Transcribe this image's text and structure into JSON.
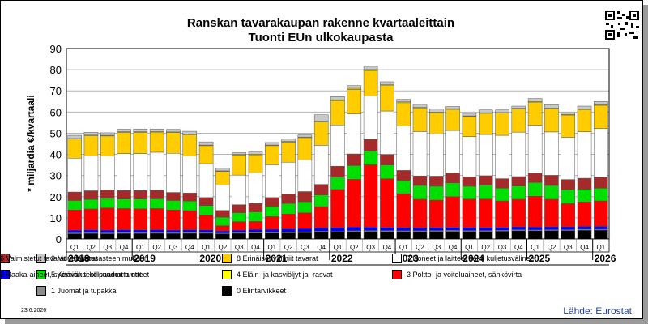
{
  "title_line1": "Ranskan tavarakaupan rakenne kvartaaleittain",
  "title_line2": "Tuonti EUn ulkokaupasta",
  "date": "23.6.2026",
  "source": "Lähde: Eurostat",
  "chart_data": {
    "type": "bar",
    "stacked": true,
    "ylabel": "* miljardia €/kvartaali",
    "ylim": [
      0,
      90
    ],
    "yticks": [
      0,
      10,
      20,
      30,
      40,
      50,
      60,
      70,
      80,
      90
    ],
    "grid": true,
    "legend_position": "bottom",
    "quarter_labels": [
      "Q1",
      "Q2",
      "Q3",
      "Q4",
      "Q1",
      "Q2",
      "Q3",
      "Q4",
      "Q1",
      "Q2",
      "Q3",
      "Q4",
      "Q1",
      "Q2",
      "Q3",
      "Q4",
      "Q1",
      "Q2",
      "Q3",
      "Q4",
      "Q1",
      "Q2",
      "Q3",
      "Q4",
      "Q1",
      "Q2",
      "Q3",
      "Q4",
      "Q1",
      "Q2",
      "Q3",
      "Q4",
      "Q1"
    ],
    "year_labels": [
      "2018",
      "2019",
      "2020",
      "2021",
      "2022",
      "2023",
      "2024",
      "2025",
      "2026"
    ],
    "series": [
      {
        "name": "0 Elintarvikkeet",
        "color": "#000000",
        "values": [
          2.5,
          2.6,
          2.5,
          2.6,
          2.6,
          2.7,
          2.6,
          2.7,
          2.7,
          2.5,
          2.7,
          2.8,
          2.8,
          2.9,
          3.0,
          3.2,
          3.2,
          3.5,
          3.6,
          3.5,
          3.5,
          3.5,
          3.6,
          3.6,
          3.6,
          3.6,
          3.7,
          3.9,
          3.9,
          4.0,
          4.0,
          4.1,
          4.2
        ]
      },
      {
        "name": "1 Juomat ja tupakka",
        "color": "#8c8c8c",
        "values": [
          0.4,
          0.4,
          0.4,
          0.5,
          0.4,
          0.4,
          0.4,
          0.5,
          0.4,
          0.3,
          0.4,
          0.5,
          0.4,
          0.4,
          0.4,
          0.5,
          0.4,
          0.4,
          0.4,
          0.5,
          0.4,
          0.4,
          0.4,
          0.5,
          0.4,
          0.4,
          0.4,
          0.5,
          0.4,
          0.4,
          0.4,
          0.5,
          0.4
        ]
      },
      {
        "name": "2 Raaka-aineet, syötäväksi kelpaamattomat",
        "color": "#0000ff",
        "values": [
          1.3,
          1.4,
          1.3,
          1.3,
          1.3,
          1.3,
          1.2,
          1.2,
          1.2,
          1.0,
          1.1,
          1.2,
          1.4,
          1.5,
          1.5,
          1.6,
          1.8,
          1.8,
          1.6,
          1.5,
          1.5,
          1.4,
          1.4,
          1.4,
          1.4,
          1.4,
          1.4,
          1.4,
          1.4,
          1.4,
          1.4,
          1.4,
          1.4
        ]
      },
      {
        "name": "3 Poltto- ja voiteluaineet, sähkövirta",
        "color": "#ff0000",
        "values": [
          9.5,
          9.8,
          10.5,
          10.0,
          10.0,
          10.0,
          9.5,
          9.0,
          7.0,
          2.5,
          4.0,
          3.8,
          6.0,
          7.0,
          7.5,
          10.0,
          18.0,
          22.5,
          29.5,
          23.0,
          16.0,
          13.5,
          13.0,
          14.5,
          13.5,
          13.5,
          12.5,
          13.0,
          14.5,
          13.0,
          11.0,
          11.5,
          12.0
        ]
      },
      {
        "name": "5 Kemian teollisuuden tuotteet",
        "color": "#00e000",
        "values": [
          4.5,
          4.5,
          4.5,
          4.5,
          4.6,
          4.6,
          4.5,
          4.5,
          4.5,
          4.0,
          4.2,
          4.5,
          4.8,
          5.0,
          5.2,
          5.5,
          5.8,
          6.5,
          6.5,
          6.5,
          6.2,
          6.5,
          6.5,
          6.5,
          6.0,
          6.5,
          6.0,
          6.2,
          6.5,
          6.5,
          6.5,
          6.0,
          6.0
        ]
      },
      {
        "name": "6 Valmistetut tavarat valmistusasteen mukaan",
        "color": "#a52a2a",
        "values": [
          4.0,
          4.1,
          4.0,
          4.0,
          4.0,
          4.0,
          3.8,
          3.8,
          3.8,
          3.2,
          3.8,
          4.0,
          4.2,
          4.5,
          4.8,
          5.0,
          5.2,
          5.5,
          5.5,
          5.0,
          4.8,
          4.5,
          4.8,
          4.8,
          4.5,
          4.5,
          4.5,
          4.5,
          4.5,
          4.8,
          4.8,
          5.2,
          5.2
        ]
      },
      {
        "name": "7 Koneet ja laitteet sekä kuljetusvälineet",
        "color": "#ffffff",
        "values": [
          16.0,
          16.5,
          16.0,
          17.5,
          17.5,
          18.0,
          18.5,
          17.5,
          16.0,
          12.0,
          14.0,
          14.5,
          15.5,
          15.0,
          15.0,
          18.5,
          19.5,
          19.0,
          20.5,
          20.5,
          21.0,
          21.0,
          20.0,
          20.0,
          19.0,
          19.5,
          20.5,
          21.0,
          22.5,
          20.5,
          20.0,
          22.0,
          23.0
        ]
      },
      {
        "name": "8 Erinäiset valmiit tavarat",
        "color": "#ffcc00",
        "values": [
          9.0,
          9.5,
          9.5,
          10.0,
          10.0,
          9.5,
          9.8,
          10.0,
          8.5,
          6.5,
          9.5,
          8.5,
          9.0,
          9.5,
          10.5,
          11.0,
          11.5,
          11.5,
          12.0,
          12.0,
          11.0,
          11.0,
          10.0,
          10.0,
          9.5,
          10.0,
          10.5,
          11.0,
          11.0,
          11.0,
          10.5,
          10.5,
          11.0
        ]
      },
      {
        "name": "4 Eläin- ja kasviöljyt ja -rasvat",
        "color": "#ffff00",
        "values": [
          0.3,
          0.3,
          0.3,
          0.3,
          0.3,
          0.3,
          0.3,
          0.3,
          0.3,
          0.2,
          0.3,
          0.3,
          0.3,
          0.3,
          0.3,
          0.4,
          0.4,
          0.5,
          0.5,
          0.4,
          0.4,
          0.4,
          0.3,
          0.3,
          0.3,
          0.3,
          0.3,
          0.3,
          0.3,
          0.3,
          0.3,
          0.3,
          0.3
        ]
      },
      {
        "name": "9 Muut tavarat",
        "color": "#c8c8c8",
        "values": [
          1.5,
          1.3,
          1.2,
          1.2,
          1.3,
          1.2,
          1.2,
          1.4,
          1.5,
          1.2,
          0.8,
          1.0,
          1.2,
          1.2,
          1.0,
          3.0,
          1.5,
          1.3,
          1.5,
          1.4,
          1.2,
          1.4,
          1.5,
          1.0,
          1.2,
          1.3,
          1.2,
          1.0,
          1.4,
          1.6,
          0.8,
          1.3,
          1.5
        ]
      }
    ],
    "legend": [
      {
        "label": "9 Muut tavarat",
        "color": "#c8c8c8"
      },
      {
        "label": "8 Erinäiset valmiit tavarat",
        "color": "#ffcc00"
      },
      {
        "label": "7 Koneet ja laitteet sekä kuljetusvälineet",
        "color": "#ffffff"
      },
      {
        "label": "6 Valmistetut tavarat valmistusasteen mukaan",
        "color": "#a52a2a"
      },
      {
        "label": "5 Kemian teollisuuden tuotteet",
        "color": "#00e000"
      },
      {
        "label": "4 Eläin- ja kasviöljyt ja -rasvat",
        "color": "#ffff00"
      },
      {
        "label": "3 Poltto- ja voiteluaineet, sähkövirta",
        "color": "#ff0000"
      },
      {
        "label": "2 Raaka-aineet, syötäväksi kelpaamattomat",
        "color": "#0000ff"
      },
      {
        "label": "1 Juomat ja tupakka",
        "color": "#8c8c8c"
      },
      {
        "label": "0 Elintarvikkeet",
        "color": "#000000"
      }
    ]
  }
}
